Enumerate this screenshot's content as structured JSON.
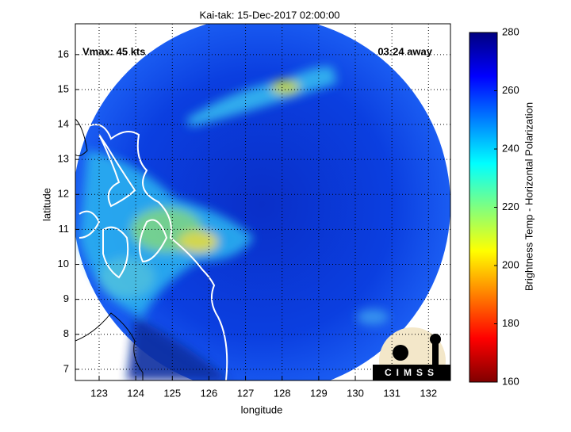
{
  "chart_data": {
    "type": "map",
    "title": "Kai-tak: 15-Dec-2017 02:00:00",
    "annotations": [
      "Vmax: 45 kts",
      "03:24 away"
    ],
    "xlabel": "longitude",
    "ylabel": "latitude",
    "xlim": [
      122.35,
      132.6
    ],
    "ylim": [
      6.68,
      16.88
    ],
    "xticks": [
      123,
      124,
      125,
      126,
      127,
      128,
      129,
      130,
      131,
      132
    ],
    "yticks": [
      7,
      8,
      9,
      10,
      11,
      12,
      13,
      14,
      15,
      16
    ],
    "grid": true,
    "colorbar": {
      "label": "Brightness Temp - Horizontal Polarization",
      "lim": [
        160,
        280
      ],
      "ticks": [
        160,
        180,
        200,
        220,
        240,
        260,
        280
      ]
    },
    "logo": "CIMSS"
  }
}
